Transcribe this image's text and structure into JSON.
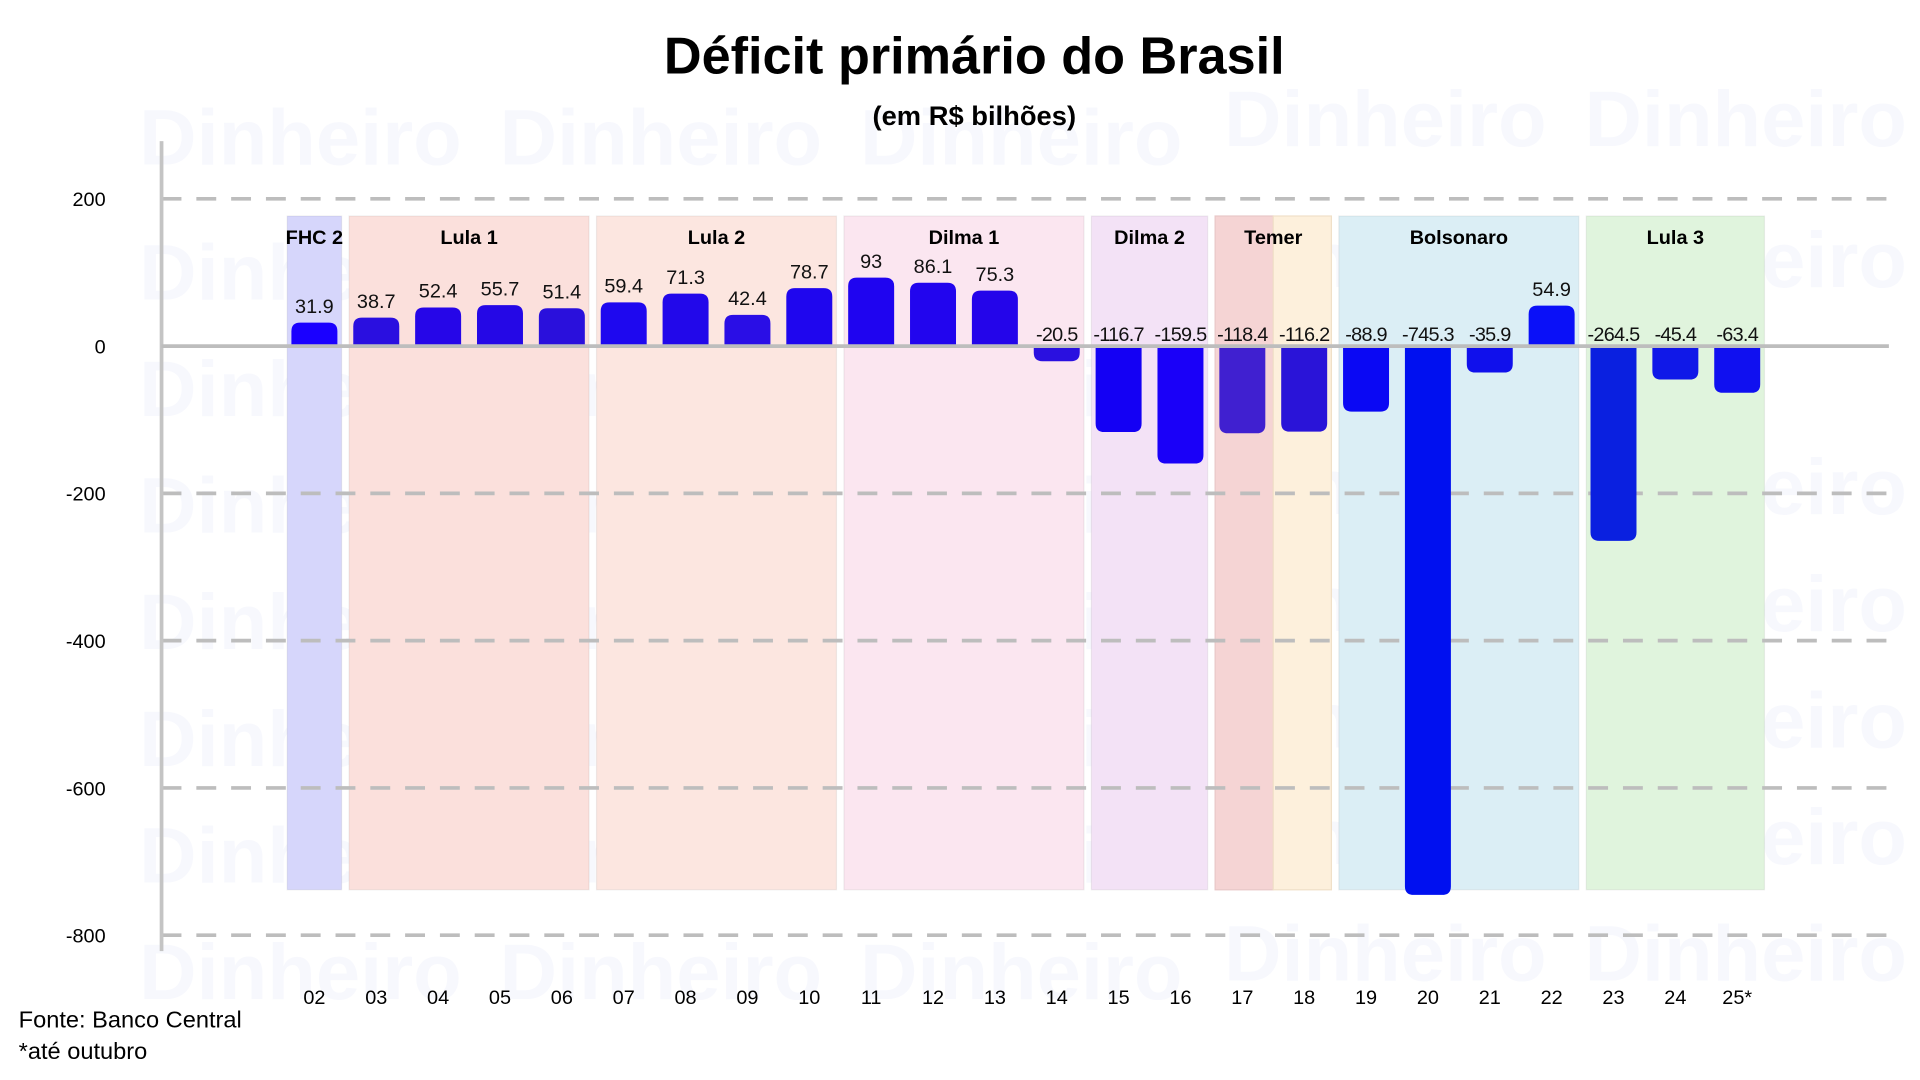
{
  "chart_data": {
    "type": "bar",
    "title": "Déficit primário do Brasil",
    "subtitle": "(em R$ bilhões)",
    "categories": [
      "02",
      "03",
      "04",
      "05",
      "06",
      "07",
      "08",
      "09",
      "10",
      "11",
      "12",
      "13",
      "14",
      "15",
      "16",
      "17",
      "18",
      "19",
      "20",
      "21",
      "22",
      "23",
      "24",
      "25*"
    ],
    "values": [
      31.9,
      38.7,
      52.4,
      55.7,
      51.4,
      59.4,
      71.3,
      42.4,
      78.7,
      93,
      86.1,
      75.3,
      -20.5,
      -116.7,
      -159.5,
      -118.4,
      -116.2,
      -88.9,
      -745.3,
      -35.9,
      54.9,
      -264.5,
      -45.4,
      -63.4
    ],
    "bar_colors": [
      "#1a00ff",
      "#2a0fe0",
      "#2606e8",
      "#2508e6",
      "#2a10dc",
      "#1e08ef",
      "#2208ea",
      "#2a0ee6",
      "#1f06ee",
      "#1f04f0",
      "#2205ee",
      "#2405ea",
      "#2a10e0",
      "#1400f4",
      "#1a00f8",
      "#4020d0",
      "#2a14d8",
      "#0a08f4",
      "#0010f0",
      "#1010ec",
      "#0a10f8",
      "#0a20e0",
      "#1018e8",
      "#1010f0"
    ],
    "ylim": [
      -800,
      200
    ],
    "yticks": [
      200,
      0,
      -200,
      -400,
      -600,
      -800
    ],
    "grid": true,
    "periods": [
      {
        "label": "FHC 2",
        "from": 0,
        "to": 0,
        "color": "#d6d6fb"
      },
      {
        "label": "Lula 1",
        "from": 1,
        "to": 4,
        "color": "#fbe0dc"
      },
      {
        "label": "Lula 2",
        "from": 5,
        "to": 8,
        "color": "#fce6e0"
      },
      {
        "label": "Dilma 1",
        "from": 9,
        "to": 12,
        "color": "#fbe6f0"
      },
      {
        "label": "Dilma 2",
        "from": 13,
        "to": 14,
        "color": "#f3e2f6"
      },
      {
        "label": "Temer",
        "from": 15,
        "to": 16,
        "color": "#f5d4d4",
        "color2": "#fdf0dc"
      },
      {
        "label": "Bolsonaro",
        "from": 17,
        "to": 20,
        "color": "#dbeef5"
      },
      {
        "label": "Lula 3",
        "from": 21,
        "to": 23,
        "color": "#e0f4dd"
      }
    ]
  },
  "footer": {
    "source": "Fonte: Banco Central",
    "note": "*até outubro"
  },
  "watermark": "Dinheiro"
}
